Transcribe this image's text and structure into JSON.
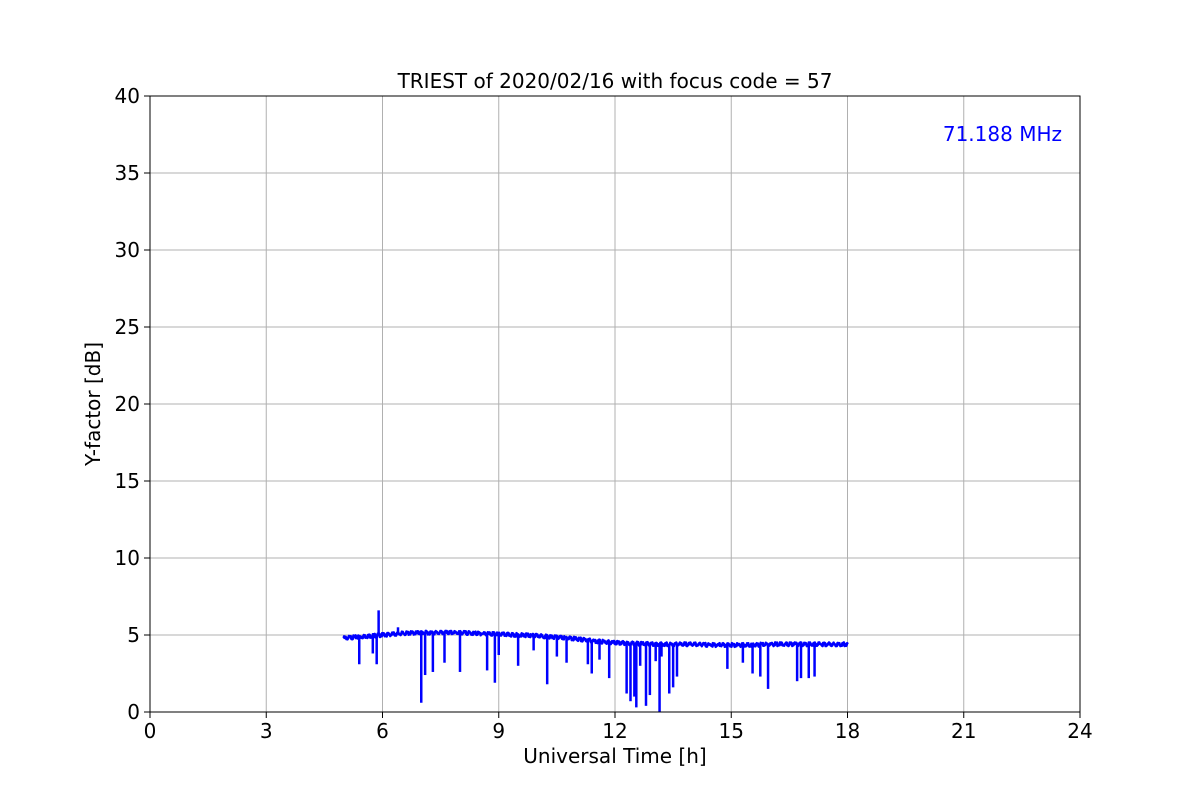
{
  "chart_data": {
    "type": "line",
    "title": "TRIEST of 2020/02/16 with focus code = 57",
    "xlabel": "Universal Time [h]",
    "ylabel": "Y-factor [dB]",
    "xlim": [
      0,
      24
    ],
    "ylim": [
      0,
      40
    ],
    "xticks": [
      0,
      3,
      6,
      9,
      12,
      15,
      18,
      21,
      24
    ],
    "yticks": [
      0,
      5,
      10,
      15,
      20,
      25,
      30,
      35,
      40
    ],
    "grid": true,
    "annotation": {
      "text": "71.188 MHz",
      "position": "top-right",
      "color": "#0000ff"
    },
    "series": [
      {
        "color": "#0000ff",
        "x": [
          5.0,
          5.5,
          6.0,
          6.5,
          7.0,
          7.5,
          8.0,
          8.5,
          9.0,
          9.5,
          10.0,
          10.5,
          11.0,
          11.5,
          12.0,
          12.5,
          13.0,
          13.5,
          14.0,
          14.5,
          15.0,
          15.5,
          16.0,
          16.5,
          17.0,
          17.5,
          18.0
        ],
        "y": [
          4.8,
          4.9,
          5.0,
          5.1,
          5.15,
          5.15,
          5.15,
          5.1,
          5.05,
          5.0,
          4.95,
          4.85,
          4.75,
          4.6,
          4.5,
          4.45,
          4.4,
          4.4,
          4.4,
          4.35,
          4.35,
          4.35,
          4.4,
          4.4,
          4.4,
          4.4,
          4.4
        ],
        "spikes": [
          {
            "x": 5.4,
            "y": 3.1
          },
          {
            "x": 5.75,
            "y": 3.8
          },
          {
            "x": 5.85,
            "y": 3.1
          },
          {
            "x": 5.9,
            "y": 6.6
          },
          {
            "x": 6.4,
            "y": 5.5
          },
          {
            "x": 7.0,
            "y": 0.6
          },
          {
            "x": 7.1,
            "y": 2.4
          },
          {
            "x": 7.3,
            "y": 2.6
          },
          {
            "x": 7.6,
            "y": 3.2
          },
          {
            "x": 8.0,
            "y": 2.6
          },
          {
            "x": 8.7,
            "y": 2.7
          },
          {
            "x": 8.9,
            "y": 1.9
          },
          {
            "x": 9.0,
            "y": 3.7
          },
          {
            "x": 9.5,
            "y": 3.0
          },
          {
            "x": 9.9,
            "y": 4.0
          },
          {
            "x": 10.25,
            "y": 1.8
          },
          {
            "x": 10.5,
            "y": 3.6
          },
          {
            "x": 10.75,
            "y": 3.2
          },
          {
            "x": 11.3,
            "y": 3.1
          },
          {
            "x": 11.4,
            "y": 2.5
          },
          {
            "x": 11.6,
            "y": 3.4
          },
          {
            "x": 11.85,
            "y": 2.2
          },
          {
            "x": 12.3,
            "y": 1.2
          },
          {
            "x": 12.4,
            "y": 0.7
          },
          {
            "x": 12.5,
            "y": 1.0
          },
          {
            "x": 12.55,
            "y": 0.3
          },
          {
            "x": 12.65,
            "y": 3.0
          },
          {
            "x": 12.8,
            "y": 0.4
          },
          {
            "x": 12.9,
            "y": 1.1
          },
          {
            "x": 13.05,
            "y": 3.3
          },
          {
            "x": 13.15,
            "y": 0.0
          },
          {
            "x": 13.2,
            "y": 3.6
          },
          {
            "x": 13.4,
            "y": 1.2
          },
          {
            "x": 13.5,
            "y": 1.6
          },
          {
            "x": 13.6,
            "y": 2.3
          },
          {
            "x": 14.9,
            "y": 2.8
          },
          {
            "x": 15.3,
            "y": 3.2
          },
          {
            "x": 15.55,
            "y": 2.5
          },
          {
            "x": 15.75,
            "y": 2.3
          },
          {
            "x": 15.95,
            "y": 1.5
          },
          {
            "x": 16.7,
            "y": 2.0
          },
          {
            "x": 16.8,
            "y": 2.2
          },
          {
            "x": 17.0,
            "y": 2.2
          },
          {
            "x": 17.15,
            "y": 2.3
          }
        ]
      }
    ]
  }
}
